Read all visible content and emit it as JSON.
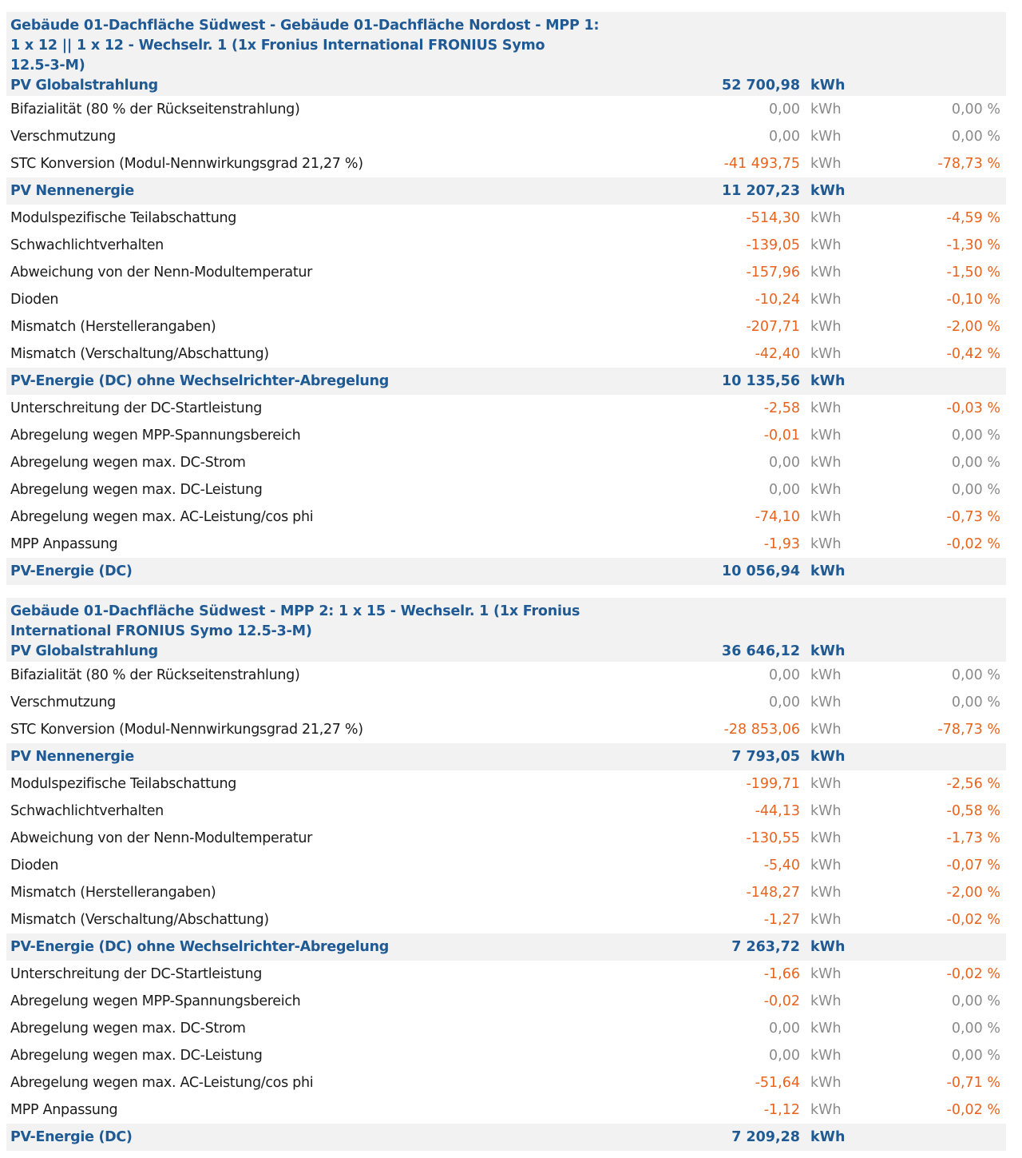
{
  "colors": {
    "heading": "#1f5a94",
    "negative": "#e8641e",
    "neutral": "#8a8a8a",
    "band": "#f2f2f2"
  },
  "sections": [
    {
      "title": "Gebäude 01-Dachfläche Südwest - Gebäude 01-Dachfläche Nordost - MPP 1:\n1 x 12 || 1 x 12 - Wechselr. 1 (1x Fronius International FRONIUS Symo\n12.5-3-M)",
      "rows": [
        {
          "label": "PV Globalstrahlung",
          "value": "52 700,98",
          "unit": "kWh",
          "pct": "",
          "kind": "sum"
        },
        {
          "label": "Bifazialität (80 % der Rückseitenstrahlung)",
          "value": "0,00",
          "unit": "kWh",
          "pct": "0,00 %",
          "kind": "neutral"
        },
        {
          "label": "Verschmutzung",
          "value": "0,00",
          "unit": "kWh",
          "pct": "0,00 %",
          "kind": "neutral"
        },
        {
          "label": "STC Konversion (Modul-Nennwirkungsgrad 21,27 %)",
          "value": "-41 493,75",
          "unit": "kWh",
          "pct": "-78,73 %",
          "kind": "neg"
        },
        {
          "label": "PV Nennenergie",
          "value": "11 207,23",
          "unit": "kWh",
          "pct": "",
          "kind": "sum"
        },
        {
          "label": "Modulspezifische Teilabschattung",
          "value": "-514,30",
          "unit": "kWh",
          "pct": "-4,59 %",
          "kind": "neg"
        },
        {
          "label": "Schwachlichtverhalten",
          "value": "-139,05",
          "unit": "kWh",
          "pct": "-1,30 %",
          "kind": "neg"
        },
        {
          "label": "Abweichung von der Nenn-Modultemperatur",
          "value": "-157,96",
          "unit": "kWh",
          "pct": "-1,50 %",
          "kind": "neg"
        },
        {
          "label": "Dioden",
          "value": "-10,24",
          "unit": "kWh",
          "pct": "-0,10 %",
          "kind": "neg"
        },
        {
          "label": "Mismatch (Herstellerangaben)",
          "value": "-207,71",
          "unit": "kWh",
          "pct": "-2,00 %",
          "kind": "neg"
        },
        {
          "label": "Mismatch (Verschaltung/Abschattung)",
          "value": "-42,40",
          "unit": "kWh",
          "pct": "-0,42 %",
          "kind": "neg"
        },
        {
          "label": "PV-Energie (DC) ohne Wechselrichter-Abregelung",
          "value": "10 135,56",
          "unit": "kWh",
          "pct": "",
          "kind": "sum"
        },
        {
          "label": "Unterschreitung der DC-Startleistung",
          "value": "-2,58",
          "unit": "kWh",
          "pct": "-0,03 %",
          "kind": "neg"
        },
        {
          "label": "Abregelung wegen MPP-Spannungsbereich",
          "value": "-0,01",
          "unit": "kWh",
          "pct": "0,00 %",
          "kind": "neg-zero"
        },
        {
          "label": "Abregelung wegen max. DC-Strom",
          "value": "0,00",
          "unit": "kWh",
          "pct": "0,00 %",
          "kind": "neutral"
        },
        {
          "label": "Abregelung wegen max. DC-Leistung",
          "value": "0,00",
          "unit": "kWh",
          "pct": "0,00 %",
          "kind": "neutral"
        },
        {
          "label": "Abregelung wegen max. AC-Leistung/cos phi",
          "value": "-74,10",
          "unit": "kWh",
          "pct": "-0,73 %",
          "kind": "neg"
        },
        {
          "label": "MPP Anpassung",
          "value": "-1,93",
          "unit": "kWh",
          "pct": "-0,02 %",
          "kind": "neg"
        },
        {
          "label": "PV-Energie (DC)",
          "value": "10 056,94",
          "unit": "kWh",
          "pct": "",
          "kind": "sum"
        }
      ]
    },
    {
      "title": "Gebäude 01-Dachfläche Südwest - MPP 2: 1 x 15 - Wechselr. 1 (1x Fronius\nInternational FRONIUS Symo 12.5-3-M)",
      "rows": [
        {
          "label": "PV Globalstrahlung",
          "value": "36 646,12",
          "unit": "kWh",
          "pct": "",
          "kind": "sum"
        },
        {
          "label": "Bifazialität (80 % der Rückseitenstrahlung)",
          "value": "0,00",
          "unit": "kWh",
          "pct": "0,00 %",
          "kind": "neutral"
        },
        {
          "label": "Verschmutzung",
          "value": "0,00",
          "unit": "kWh",
          "pct": "0,00 %",
          "kind": "neutral"
        },
        {
          "label": "STC Konversion (Modul-Nennwirkungsgrad 21,27 %)",
          "value": "-28 853,06",
          "unit": "kWh",
          "pct": "-78,73 %",
          "kind": "neg"
        },
        {
          "label": "PV Nennenergie",
          "value": "7 793,05",
          "unit": "kWh",
          "pct": "",
          "kind": "sum"
        },
        {
          "label": "Modulspezifische Teilabschattung",
          "value": "-199,71",
          "unit": "kWh",
          "pct": "-2,56 %",
          "kind": "neg"
        },
        {
          "label": "Schwachlichtverhalten",
          "value": "-44,13",
          "unit": "kWh",
          "pct": "-0,58 %",
          "kind": "neg"
        },
        {
          "label": "Abweichung von der Nenn-Modultemperatur",
          "value": "-130,55",
          "unit": "kWh",
          "pct": "-1,73 %",
          "kind": "neg"
        },
        {
          "label": "Dioden",
          "value": "-5,40",
          "unit": "kWh",
          "pct": "-0,07 %",
          "kind": "neg"
        },
        {
          "label": "Mismatch (Herstellerangaben)",
          "value": "-148,27",
          "unit": "kWh",
          "pct": "-2,00 %",
          "kind": "neg"
        },
        {
          "label": "Mismatch (Verschaltung/Abschattung)",
          "value": "-1,27",
          "unit": "kWh",
          "pct": "-0,02 %",
          "kind": "neg"
        },
        {
          "label": "PV-Energie (DC) ohne Wechselrichter-Abregelung",
          "value": "7 263,72",
          "unit": "kWh",
          "pct": "",
          "kind": "sum"
        },
        {
          "label": "Unterschreitung der DC-Startleistung",
          "value": "-1,66",
          "unit": "kWh",
          "pct": "-0,02 %",
          "kind": "neg"
        },
        {
          "label": "Abregelung wegen MPP-Spannungsbereich",
          "value": "-0,02",
          "unit": "kWh",
          "pct": "0,00 %",
          "kind": "neg-zero"
        },
        {
          "label": "Abregelung wegen max. DC-Strom",
          "value": "0,00",
          "unit": "kWh",
          "pct": "0,00 %",
          "kind": "neutral"
        },
        {
          "label": "Abregelung wegen max. DC-Leistung",
          "value": "0,00",
          "unit": "kWh",
          "pct": "0,00 %",
          "kind": "neutral"
        },
        {
          "label": "Abregelung wegen max. AC-Leistung/cos phi",
          "value": "-51,64",
          "unit": "kWh",
          "pct": "-0,71 %",
          "kind": "neg"
        },
        {
          "label": "MPP Anpassung",
          "value": "-1,12",
          "unit": "kWh",
          "pct": "-0,02 %",
          "kind": "neg"
        },
        {
          "label": "PV-Energie (DC)",
          "value": "7 209,28",
          "unit": "kWh",
          "pct": "",
          "kind": "sum"
        }
      ]
    }
  ]
}
